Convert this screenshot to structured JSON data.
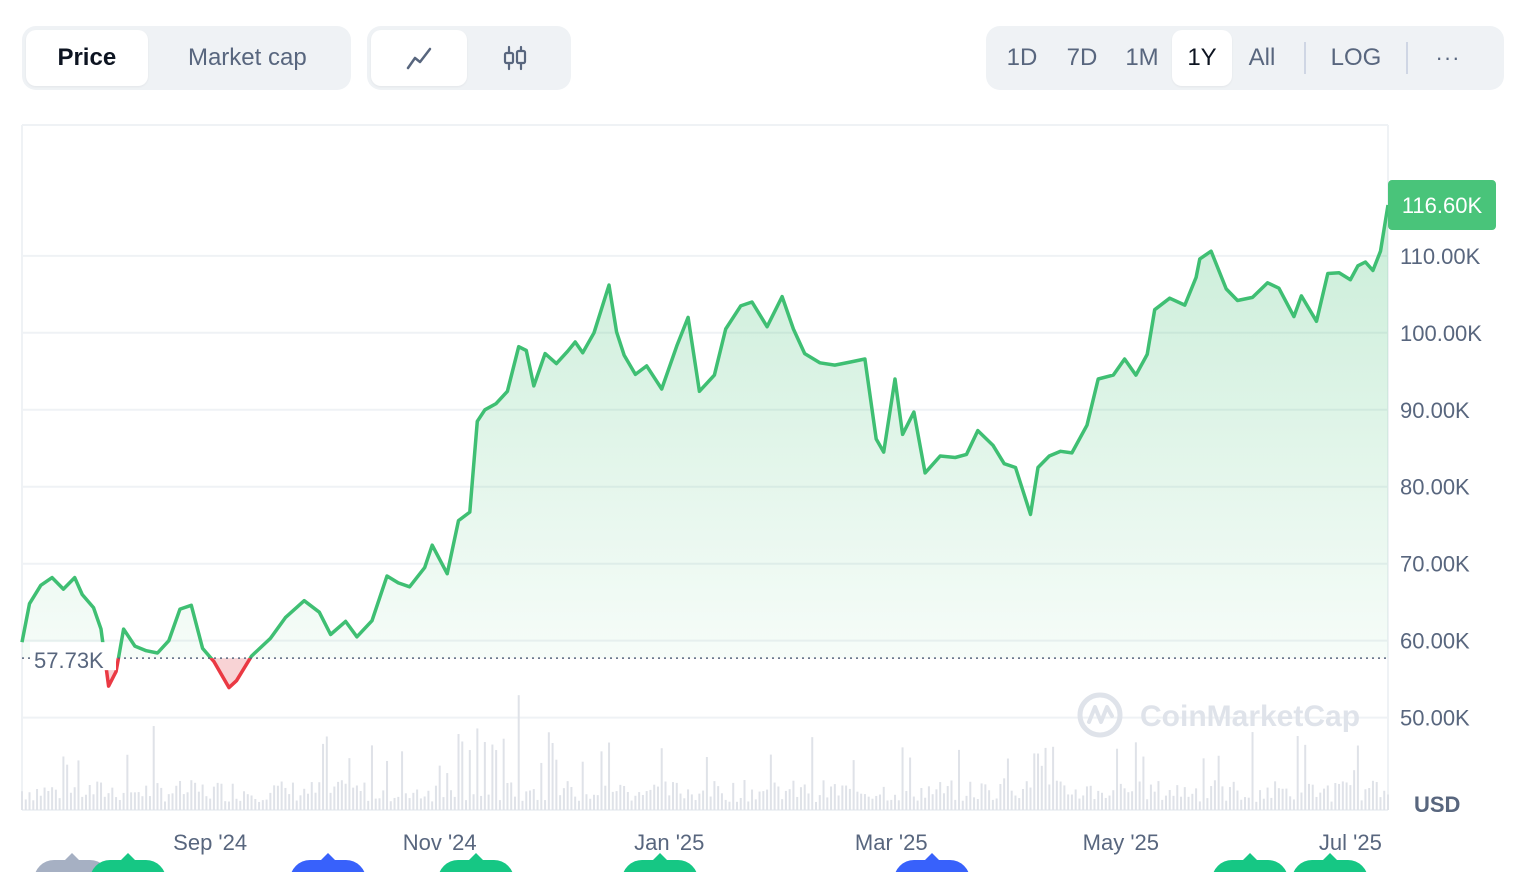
{
  "toolbar": {
    "type_tabs": [
      {
        "label": "Price",
        "active": true
      },
      {
        "label": "Market cap",
        "active": false
      }
    ],
    "style_tabs": [
      {
        "icon": "line-chart-icon",
        "active": true
      },
      {
        "icon": "candlestick-icon",
        "active": false
      }
    ],
    "range_tabs": [
      {
        "label": "1D",
        "active": false
      },
      {
        "label": "7D",
        "active": false
      },
      {
        "label": "1M",
        "active": false
      },
      {
        "label": "1Y",
        "active": true
      },
      {
        "label": "All",
        "active": false
      }
    ],
    "log_label": "LOG",
    "more_label": "···"
  },
  "watermark": "CoinMarketCap",
  "colors": {
    "up": "#3fbf73",
    "down": "#ea3943",
    "up_fill": "#d8f2e2",
    "down_fill": "#f8d3d5",
    "grid": "#eff2f5",
    "volume": "#dfe2e8",
    "event_green": "#16c784",
    "event_blue": "#3861fb",
    "event_gray": "#a6b0c3"
  },
  "chart_data": {
    "type": "area",
    "currency": "USD",
    "y_ticks": [
      {
        "value": 50000,
        "label": "50.00K"
      },
      {
        "value": 60000,
        "label": "60.00K"
      },
      {
        "value": 70000,
        "label": "70.00K"
      },
      {
        "value": 80000,
        "label": "80.00K"
      },
      {
        "value": 90000,
        "label": "90.00K"
      },
      {
        "value": 100000,
        "label": "100.00K"
      },
      {
        "value": 110000,
        "label": "110.00K"
      }
    ],
    "ylim": [
      38000,
      127000
    ],
    "x_ticks": [
      {
        "date": "2024-09-01",
        "label": "Sep '24"
      },
      {
        "date": "2024-11-01",
        "label": "Nov '24"
      },
      {
        "date": "2025-01-01",
        "label": "Jan '25"
      },
      {
        "date": "2025-03-01",
        "label": "Mar '25"
      },
      {
        "date": "2025-05-01",
        "label": "May '25"
      },
      {
        "date": "2025-07-01",
        "label": "Jul '25"
      }
    ],
    "x_range": [
      "2024-07-13",
      "2025-07-11"
    ],
    "reference_price": {
      "value": 57730,
      "label": "57.73K"
    },
    "current_price": {
      "value": 116600,
      "label": "116.60K"
    },
    "series": [
      {
        "x": [
          "2024-07-13",
          "2024-07-15",
          "2024-07-18",
          "2024-07-21",
          "2024-07-24",
          "2024-07-27",
          "2024-07-29",
          "2024-08-01",
          "2024-08-03",
          "2024-08-05",
          "2024-08-07",
          "2024-08-09",
          "2024-08-12",
          "2024-08-15",
          "2024-08-18",
          "2024-08-21",
          "2024-08-24",
          "2024-08-27",
          "2024-08-30",
          "2024-09-02",
          "2024-09-06",
          "2024-09-08",
          "2024-09-12",
          "2024-09-17",
          "2024-09-21",
          "2024-09-26",
          "2024-09-30",
          "2024-10-03",
          "2024-10-07",
          "2024-10-10",
          "2024-10-14",
          "2024-10-18",
          "2024-10-21",
          "2024-10-24",
          "2024-10-28",
          "2024-10-30",
          "2024-11-03",
          "2024-11-06",
          "2024-11-09",
          "2024-11-11",
          "2024-11-13",
          "2024-11-16",
          "2024-11-19",
          "2024-11-22",
          "2024-11-24",
          "2024-11-26",
          "2024-11-29",
          "2024-12-02",
          "2024-12-05",
          "2024-12-07",
          "2024-12-09",
          "2024-12-12",
          "2024-12-16",
          "2024-12-18",
          "2024-12-20",
          "2024-12-23",
          "2024-12-26",
          "2024-12-30",
          "2025-01-03",
          "2025-01-06",
          "2025-01-09",
          "2025-01-13",
          "2025-01-16",
          "2025-01-20",
          "2025-01-23",
          "2025-01-27",
          "2025-01-31",
          "2025-02-03",
          "2025-02-06",
          "2025-02-10",
          "2025-02-14",
          "2025-02-18",
          "2025-02-22",
          "2025-02-25",
          "2025-02-27",
          "2025-03-02",
          "2025-03-04",
          "2025-03-07",
          "2025-03-10",
          "2025-03-14",
          "2025-03-18",
          "2025-03-21",
          "2025-03-24",
          "2025-03-28",
          "2025-03-31",
          "2025-04-03",
          "2025-04-07",
          "2025-04-09",
          "2025-04-12",
          "2025-04-15",
          "2025-04-18",
          "2025-04-22",
          "2025-04-25",
          "2025-04-29",
          "2025-05-02",
          "2025-05-05",
          "2025-05-08",
          "2025-05-10",
          "2025-05-14",
          "2025-05-18",
          "2025-05-21",
          "2025-05-22",
          "2025-05-25",
          "2025-05-29",
          "2025-06-01",
          "2025-06-05",
          "2025-06-09",
          "2025-06-12",
          "2025-06-16",
          "2025-06-18",
          "2025-06-22",
          "2025-06-25",
          "2025-06-28",
          "2025-07-01",
          "2025-07-03",
          "2025-07-05",
          "2025-07-07",
          "2025-07-09",
          "2025-07-11"
        ],
        "values": [
          59800,
          64800,
          67200,
          68200,
          66700,
          68200,
          66000,
          64300,
          61500,
          54100,
          56000,
          61500,
          59300,
          58700,
          58400,
          60000,
          64100,
          64600,
          59000,
          57300,
          53900,
          54800,
          58000,
          60300,
          63000,
          65200,
          63700,
          60800,
          62500,
          60500,
          62600,
          68400,
          67500,
          67000,
          69500,
          72400,
          68700,
          75600,
          76700,
          88500,
          90000,
          90800,
          92400,
          98200,
          97700,
          93100,
          97300,
          96000,
          97600,
          98800,
          97400,
          100000,
          106200,
          100100,
          97100,
          94600,
          95700,
          92700,
          98300,
          102000,
          92400,
          94500,
          100500,
          103500,
          104000,
          100800,
          104700,
          100500,
          97300,
          96100,
          95800,
          96200,
          96600,
          86200,
          84500,
          94000,
          86800,
          89700,
          81800,
          84000,
          83800,
          84200,
          87300,
          85400,
          83000,
          82500,
          76400,
          82500,
          84000,
          84600,
          84400,
          88000,
          94000,
          94500,
          96600,
          94500,
          97200,
          103000,
          104500,
          103600,
          107200,
          109600,
          110600,
          105700,
          104200,
          104600,
          106500,
          105800,
          102100,
          104800,
          101500,
          107700,
          107800,
          106900,
          108700,
          109200,
          108100,
          110600,
          116600
        ]
      }
    ]
  },
  "events": [
    {
      "color": "gray"
    },
    {
      "color": "green"
    },
    {
      "color": "blue"
    },
    {
      "color": "green"
    },
    {
      "color": "green"
    },
    {
      "color": "blue"
    },
    {
      "color": "green"
    },
    {
      "color": "green"
    }
  ]
}
